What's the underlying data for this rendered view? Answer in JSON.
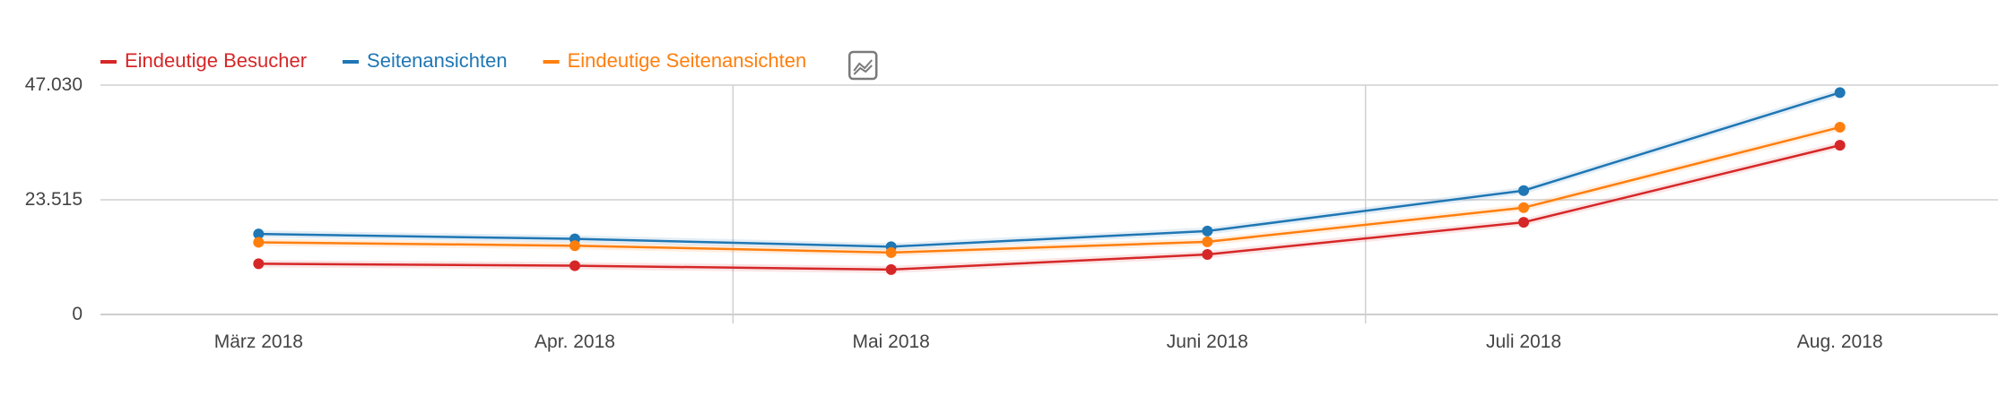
{
  "chart_data": {
    "type": "line",
    "categories": [
      "März 2018",
      "Apr. 2018",
      "Mai 2018",
      "Juni 2018",
      "Juli 2018",
      "Aug. 2018"
    ],
    "y_ticks": [
      "0",
      "23.515",
      "47.030"
    ],
    "ylim": [
      0,
      47030
    ],
    "grid": true,
    "legend_position": "top-left",
    "series": [
      {
        "name": "Eindeutige Besucher",
        "color": "#d62728",
        "values": [
          10400,
          10000,
          9200,
          12300,
          18900,
          34700
        ]
      },
      {
        "name": "Seitenansichten",
        "color": "#1f77b4",
        "values": [
          16500,
          15500,
          13900,
          17100,
          25400,
          45500
        ]
      },
      {
        "name": "Eindeutige Seitenansichten",
        "color": "#ff7f0e",
        "values": [
          14800,
          14100,
          12700,
          14900,
          21900,
          38400
        ]
      }
    ]
  },
  "legend_toggle_icon": "line-chart-icon"
}
